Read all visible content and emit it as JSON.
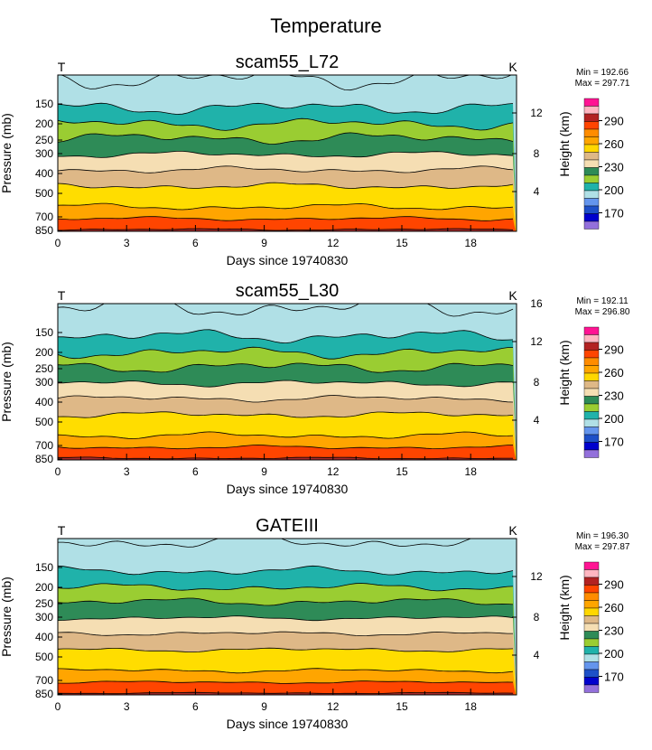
{
  "figure": {
    "title": "Temperature"
  },
  "chart_data": [
    {
      "type": "heatmap",
      "title": "scam55_L72",
      "corner_left": "T",
      "corner_right": "K",
      "xlabel": "Days since 19740830",
      "ylabel": "Pressure (mb)",
      "ylabel_right": "Height (km)",
      "xlim": [
        0,
        20
      ],
      "xticks": [
        "0",
        "3",
        "6",
        "9",
        "12",
        "15",
        "18"
      ],
      "yticks": [
        "150",
        "200",
        "250",
        "300",
        "400",
        "500",
        "700",
        "850"
      ],
      "yticks_right": [
        "4",
        "8",
        "12"
      ],
      "min_label": "Min = 192.66",
      "max_label": "Max = 297.71",
      "colorbar_labels": [
        "290",
        "260",
        "230",
        "200",
        "170"
      ],
      "contour_levels_K": [
        290,
        280,
        270,
        260,
        250,
        240,
        230,
        220,
        210,
        200
      ],
      "band_colors": [
        "#a52a2a",
        "#ff4500",
        "#ffa500",
        "#ffdd00",
        "#deb887",
        "#f5deb3",
        "#2e8b57",
        "#9acd32",
        "#20b2aa",
        "#b0e0e6"
      ]
    },
    {
      "type": "heatmap",
      "title": "scam55_L30",
      "corner_left": "T",
      "corner_right": "K",
      "xlabel": "Days since 19740830",
      "ylabel": "Pressure (mb)",
      "ylabel_right": "Height (km)",
      "xlim": [
        0,
        20
      ],
      "xticks": [
        "0",
        "3",
        "6",
        "9",
        "12",
        "15",
        "18"
      ],
      "yticks": [
        "150",
        "200",
        "250",
        "300",
        "400",
        "500",
        "700",
        "850"
      ],
      "yticks_right": [
        "4",
        "8",
        "12",
        "16"
      ],
      "min_label": "Min = 192.11",
      "max_label": "Max = 296.80",
      "colorbar_labels": [
        "290",
        "260",
        "230",
        "200",
        "170"
      ],
      "contour_levels_K": [
        290,
        280,
        270,
        260,
        250,
        240,
        230,
        220,
        210,
        200
      ],
      "band_colors": [
        "#a52a2a",
        "#ff4500",
        "#ffa500",
        "#ffdd00",
        "#deb887",
        "#f5deb3",
        "#2e8b57",
        "#9acd32",
        "#20b2aa",
        "#b0e0e6"
      ]
    },
    {
      "type": "heatmap",
      "title": "GATEIII",
      "corner_left": "T",
      "corner_right": "K",
      "xlabel": "Days since 19740830",
      "ylabel": "Pressure (mb)",
      "ylabel_right": "Height (km)",
      "xlim": [
        0,
        20
      ],
      "xticks": [
        "0",
        "3",
        "6",
        "9",
        "12",
        "15",
        "18"
      ],
      "yticks": [
        "150",
        "200",
        "250",
        "300",
        "400",
        "500",
        "700",
        "850"
      ],
      "yticks_right": [
        "4",
        "8",
        "12"
      ],
      "min_label": "Min = 196.30",
      "max_label": "Max = 297.87",
      "colorbar_labels": [
        "290",
        "260",
        "230",
        "200",
        "170"
      ],
      "contour_levels_K": [
        290,
        280,
        270,
        260,
        250,
        240,
        230,
        220,
        210,
        200
      ],
      "band_colors": [
        "#a52a2a",
        "#ff4500",
        "#ffa500",
        "#ffdd00",
        "#deb887",
        "#f5deb3",
        "#2e8b57",
        "#9acd32",
        "#20b2aa",
        "#b0e0e6"
      ]
    }
  ],
  "colorbar_colors": [
    "#ff1493",
    "#ffb6c1",
    "#b22222",
    "#ff4500",
    "#ff8c00",
    "#ffa500",
    "#ffd700",
    "#deb887",
    "#f5deb3",
    "#2e8b57",
    "#9acd32",
    "#20b2aa",
    "#b0e0e6",
    "#6495ed",
    "#1e50c8",
    "#0000cd",
    "#9370db"
  ]
}
